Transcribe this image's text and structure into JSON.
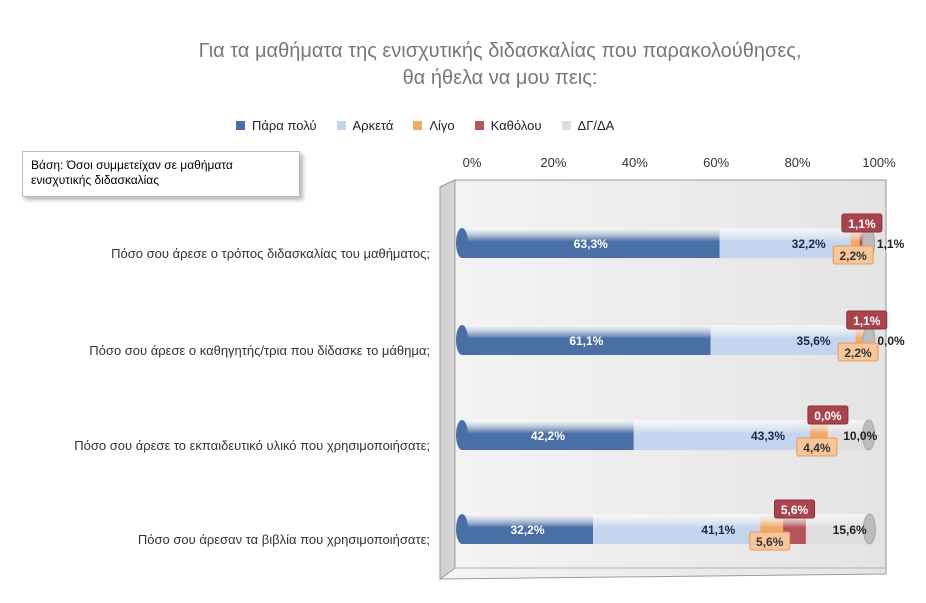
{
  "chart_data": {
    "type": "bar",
    "orientation": "horizontal",
    "stacked": true,
    "percent_stacked": true,
    "title": "Για τα μαθήματα της ενισχυτικής διδασκαλίας που παρακολούθησες, θα ήθελα να μου πεις:",
    "title_lines": [
      "Για τα μαθήματα της ενισχυτικής διδασκαλίας που παρακολούθησες,",
      "θα ήθελα να μου πεις:"
    ],
    "base_note": [
      "Βάση: Όσοι συμμετείχαν σε μαθήματα",
      "ενισχυτικής διδασκαλίας"
    ],
    "xlim": [
      0,
      100
    ],
    "x_ticks": [
      "0%",
      "20%",
      "40%",
      "60%",
      "80%",
      "100%"
    ],
    "x_axis_position": "top",
    "legend_position": "top",
    "grid": false,
    "categories": [
      "Πόσο σου άρεσε ο τρόπος διδασκαλίας του μαθήματος;",
      "Πόσο σου άρεσε ο καθηγητής/τρια που δίδασκε το μάθημα;",
      "Πόσο σου άρεσε το εκπαιδευτικό υλικό που χρησιμοποιήσατε;",
      "Πόσο σου άρεσαν τα βιβλία που χρησιμοποιήσατε;"
    ],
    "series": [
      {
        "name": "Πάρα πολύ",
        "color": "#4a6fa5",
        "values": [
          63.3,
          61.1,
          42.2,
          32.2
        ],
        "labels": [
          "63,3%",
          "61,1%",
          "42,2%",
          "32,2%"
        ]
      },
      {
        "name": "Αρκετά",
        "color": "#c5d5ee",
        "values": [
          32.2,
          35.6,
          43.3,
          41.1
        ],
        "labels": [
          "32,2%",
          "35,6%",
          "43,3%",
          "41,1%"
        ]
      },
      {
        "name": "Λίγο",
        "color": "#f2a868",
        "values": [
          2.2,
          2.2,
          4.4,
          5.6
        ],
        "labels": [
          "2,2%",
          "2,2%",
          "4,4%",
          "5,6%"
        ]
      },
      {
        "name": "Καθόλου",
        "color": "#b5545c",
        "values": [
          1.1,
          1.1,
          0.0,
          5.6
        ],
        "labels": [
          "1,1%",
          "1,1%",
          "0,0%",
          "5,6%"
        ]
      },
      {
        "name": "ΔΓ/ΔΑ",
        "color": "#dedede",
        "values": [
          1.1,
          0.0,
          10.0,
          15.6
        ],
        "labels": [
          "1,1%",
          "0,0%",
          "10,0%",
          "15,6%"
        ]
      }
    ]
  }
}
